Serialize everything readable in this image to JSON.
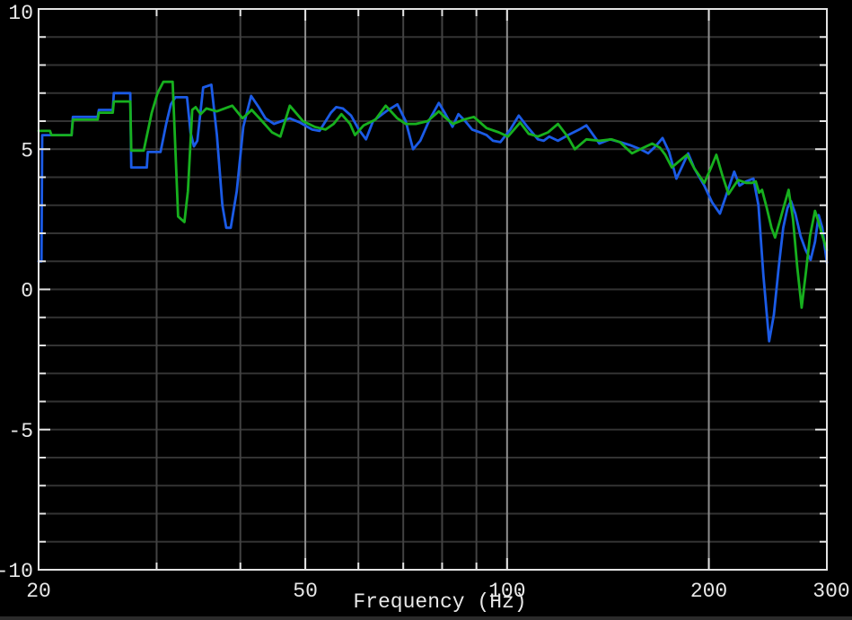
{
  "chart_data": {
    "type": "line",
    "title": "",
    "xlabel": "Frequency (Hz)",
    "ylabel": "",
    "x_scale": "log",
    "xlim": [
      20,
      300
    ],
    "ylim": [
      -10,
      10
    ],
    "grid": true,
    "legend": "none",
    "x_tick_values": [
      20,
      50,
      100,
      200,
      300
    ],
    "x_tick_labels": [
      "20",
      "50",
      "100",
      "200",
      "300"
    ],
    "y_tick_values": [
      10,
      5,
      0,
      -5,
      -10
    ],
    "y_tick_labels": [
      "10",
      "5",
      "0",
      "-5",
      "-10"
    ],
    "y_grid_step": 1,
    "x_minor_gridlines": [
      30,
      40,
      60,
      70,
      80,
      90
    ],
    "x_major_gridlines": [
      50,
      100,
      200
    ],
    "style": {
      "background": "#000000",
      "border_color": "#e3e3e3",
      "text_color": "#e8e8e8",
      "h_grid_color": "#333333",
      "v_grid_minor_color": "#424242",
      "v_grid_major_color": "#8e8e8e",
      "bottom_strip_color": "#2b2b2b"
    },
    "series": [
      {
        "name": "blue-trace",
        "color": "#1b5be6",
        "points": [
          [
            20,
            1.0
          ],
          [
            20.2,
            1.0
          ],
          [
            20.25,
            5.5
          ],
          [
            22.4,
            5.5
          ],
          [
            22.5,
            6.15
          ],
          [
            24.5,
            6.15
          ],
          [
            24.6,
            6.4
          ],
          [
            25.8,
            6.4
          ],
          [
            25.9,
            7.0
          ],
          [
            27.4,
            7.0
          ],
          [
            27.5,
            4.35
          ],
          [
            29.0,
            4.35
          ],
          [
            29.1,
            4.9
          ],
          [
            30.4,
            4.9
          ],
          [
            31.0,
            5.9
          ],
          [
            31.5,
            6.6
          ],
          [
            32.0,
            6.85
          ],
          [
            33.3,
            6.85
          ],
          [
            33.7,
            5.6
          ],
          [
            34.1,
            5.1
          ],
          [
            34.5,
            5.3
          ],
          [
            35.2,
            7.2
          ],
          [
            36.2,
            7.3
          ],
          [
            36.9,
            5.5
          ],
          [
            37.6,
            3.0
          ],
          [
            38.1,
            2.2
          ],
          [
            38.7,
            2.2
          ],
          [
            39.5,
            3.5
          ],
          [
            40.4,
            5.8
          ],
          [
            41.5,
            6.9
          ],
          [
            42.6,
            6.5
          ],
          [
            43.6,
            6.1
          ],
          [
            44.9,
            5.9
          ],
          [
            46.1,
            6.0
          ],
          [
            47.4,
            6.1
          ],
          [
            49.1,
            5.95
          ],
          [
            51.2,
            5.7
          ],
          [
            52.5,
            5.65
          ],
          [
            54.6,
            6.3
          ],
          [
            55.6,
            6.5
          ],
          [
            56.9,
            6.45
          ],
          [
            58.5,
            6.2
          ],
          [
            60.1,
            5.7
          ],
          [
            61.6,
            5.35
          ],
          [
            63.1,
            6.0
          ],
          [
            66.0,
            6.35
          ],
          [
            68.6,
            6.6
          ],
          [
            70.6,
            6.0
          ],
          [
            72.4,
            5.0
          ],
          [
            74.2,
            5.3
          ],
          [
            76.6,
            6.05
          ],
          [
            79.1,
            6.65
          ],
          [
            80.7,
            6.3
          ],
          [
            82.9,
            5.8
          ],
          [
            84.6,
            6.25
          ],
          [
            86.6,
            6.0
          ],
          [
            88.7,
            5.7
          ],
          [
            91.1,
            5.6
          ],
          [
            93.2,
            5.5
          ],
          [
            95.3,
            5.3
          ],
          [
            97.7,
            5.25
          ],
          [
            101.1,
            5.7
          ],
          [
            104.1,
            6.2
          ],
          [
            107.2,
            5.8
          ],
          [
            111.2,
            5.35
          ],
          [
            113.4,
            5.3
          ],
          [
            115.6,
            5.45
          ],
          [
            119.1,
            5.3
          ],
          [
            123.3,
            5.5
          ],
          [
            128.1,
            5.7
          ],
          [
            131.3,
            5.85
          ],
          [
            134.5,
            5.5
          ],
          [
            137.3,
            5.2
          ],
          [
            142.4,
            5.35
          ],
          [
            147.4,
            5.25
          ],
          [
            152.4,
            5.15
          ],
          [
            158.1,
            5.0
          ],
          [
            162.4,
            4.85
          ],
          [
            166.5,
            5.1
          ],
          [
            170.6,
            5.4
          ],
          [
            174.5,
            4.9
          ],
          [
            178.9,
            3.95
          ],
          [
            182.6,
            4.4
          ],
          [
            186.3,
            4.85
          ],
          [
            190.4,
            4.3
          ],
          [
            196.9,
            3.7
          ],
          [
            202.3,
            3.1
          ],
          [
            207.8,
            2.7
          ],
          [
            213.3,
            3.5
          ],
          [
            218.2,
            4.2
          ],
          [
            222.2,
            3.7
          ],
          [
            227.3,
            3.85
          ],
          [
            233.1,
            3.95
          ],
          [
            237.2,
            3.0
          ],
          [
            241.2,
            0.5
          ],
          [
            246.0,
            -1.85
          ],
          [
            250.1,
            -0.9
          ],
          [
            254.3,
            0.8
          ],
          [
            258.2,
            2.2
          ],
          [
            262.0,
            2.9
          ],
          [
            265.2,
            3.15
          ],
          [
            269.2,
            2.7
          ],
          [
            274.1,
            1.9
          ],
          [
            278.9,
            1.4
          ],
          [
            283.7,
            1.05
          ],
          [
            288.0,
            1.7
          ],
          [
            291.7,
            2.65
          ],
          [
            295.3,
            2.2
          ],
          [
            297.9,
            1.5
          ],
          [
            300,
            0.95
          ]
        ]
      },
      {
        "name": "green-trace",
        "color": "#17b01e",
        "points": [
          [
            20,
            5.65
          ],
          [
            20.8,
            5.65
          ],
          [
            20.9,
            5.5
          ],
          [
            22.4,
            5.5
          ],
          [
            22.5,
            6.05
          ],
          [
            24.5,
            6.05
          ],
          [
            24.6,
            6.3
          ],
          [
            25.8,
            6.3
          ],
          [
            25.9,
            6.7
          ],
          [
            27.4,
            6.7
          ],
          [
            27.5,
            4.95
          ],
          [
            28.7,
            4.95
          ],
          [
            29.5,
            6.3
          ],
          [
            30.1,
            7.0
          ],
          [
            30.7,
            7.4
          ],
          [
            31.7,
            7.4
          ],
          [
            32.3,
            2.6
          ],
          [
            33.0,
            2.4
          ],
          [
            33.4,
            3.5
          ],
          [
            33.9,
            6.4
          ],
          [
            34.3,
            6.5
          ],
          [
            34.9,
            6.25
          ],
          [
            35.6,
            6.45
          ],
          [
            36.9,
            6.35
          ],
          [
            38.9,
            6.55
          ],
          [
            40.3,
            6.1
          ],
          [
            41.6,
            6.4
          ],
          [
            43.1,
            6.0
          ],
          [
            44.6,
            5.6
          ],
          [
            45.9,
            5.45
          ],
          [
            47.4,
            6.55
          ],
          [
            49.6,
            6.0
          ],
          [
            51.6,
            5.8
          ],
          [
            53.6,
            5.7
          ],
          [
            55.1,
            5.9
          ],
          [
            56.6,
            6.25
          ],
          [
            58.3,
            5.9
          ],
          [
            59.3,
            5.5
          ],
          [
            61.1,
            5.85
          ],
          [
            63.6,
            6.05
          ],
          [
            65.9,
            6.55
          ],
          [
            68.6,
            6.1
          ],
          [
            70.6,
            5.9
          ],
          [
            73.1,
            5.9
          ],
          [
            76.1,
            6.0
          ],
          [
            79.1,
            6.35
          ],
          [
            81.1,
            6.1
          ],
          [
            83.1,
            5.9
          ],
          [
            86.1,
            6.05
          ],
          [
            89.2,
            6.15
          ],
          [
            93.2,
            5.75
          ],
          [
            97.2,
            5.6
          ],
          [
            100.3,
            5.45
          ],
          [
            104.6,
            5.95
          ],
          [
            107.7,
            5.55
          ],
          [
            111.2,
            5.45
          ],
          [
            115.1,
            5.6
          ],
          [
            119.1,
            5.9
          ],
          [
            123.1,
            5.45
          ],
          [
            126.2,
            5.0
          ],
          [
            131.3,
            5.35
          ],
          [
            137.3,
            5.3
          ],
          [
            143.2,
            5.35
          ],
          [
            147.4,
            5.25
          ],
          [
            150.4,
            5.05
          ],
          [
            153.6,
            4.85
          ],
          [
            158.1,
            5.0
          ],
          [
            164.6,
            5.2
          ],
          [
            169.1,
            5.05
          ],
          [
            172.2,
            4.8
          ],
          [
            176.1,
            4.35
          ],
          [
            181.2,
            4.6
          ],
          [
            185.6,
            4.8
          ],
          [
            190.4,
            4.3
          ],
          [
            196.9,
            3.8
          ],
          [
            201.2,
            4.3
          ],
          [
            205.2,
            4.8
          ],
          [
            209.3,
            4.1
          ],
          [
            214.0,
            3.4
          ],
          [
            218.2,
            3.7
          ],
          [
            221.2,
            3.9
          ],
          [
            227.3,
            3.8
          ],
          [
            232.1,
            3.8
          ],
          [
            235.0,
            3.85
          ],
          [
            237.7,
            3.45
          ],
          [
            240.1,
            3.55
          ],
          [
            244.1,
            2.9
          ],
          [
            248.0,
            2.2
          ],
          [
            251.1,
            1.85
          ],
          [
            255.0,
            2.4
          ],
          [
            259.1,
            3.0
          ],
          [
            263.1,
            3.55
          ],
          [
            267.1,
            2.5
          ],
          [
            271.0,
            0.8
          ],
          [
            275.1,
            -0.65
          ],
          [
            279.1,
            0.6
          ],
          [
            283.1,
            1.9
          ],
          [
            288.0,
            2.8
          ],
          [
            292.1,
            2.35
          ],
          [
            296.0,
            1.85
          ],
          [
            300,
            1.4
          ]
        ]
      }
    ]
  }
}
